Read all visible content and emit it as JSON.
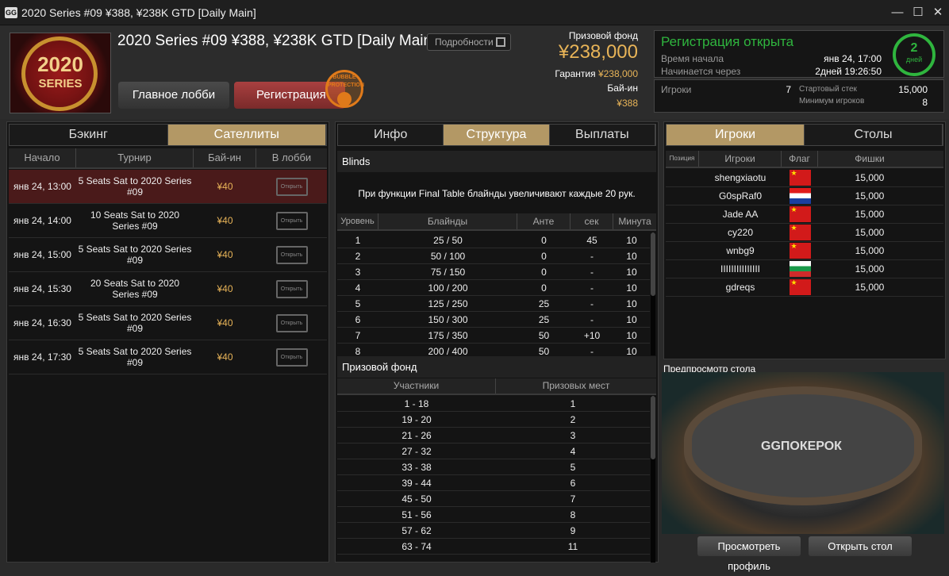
{
  "window": {
    "title": "2020 Series #09 ¥388, ¥238K GTD [Daily Main]",
    "app_logo": "GG",
    "minimize": "—",
    "maximize": "☐",
    "close": "✕"
  },
  "header": {
    "logo_year": "2020",
    "logo_series": "SERIES",
    "title": "2020 Series #09 ¥388, ¥238K GTD [Daily Main]",
    "details_label": "Подробности",
    "lobby_label": "Главное лобби",
    "register_label": "Регистрация",
    "bubble_badge": "BUBBLE PROTECTION",
    "prize_pool_label": "Призовой фонд",
    "prize_pool": "¥238,000",
    "guarantee_label": "Гарантия",
    "guarantee": "¥238,000",
    "buyin_label": "Бай-ин",
    "buyin": "¥388"
  },
  "status": {
    "title": "Регистрация открыта",
    "start_label": "Время начала",
    "start": "янв 24, 17:00",
    "starts_in_label": "Начинается через",
    "starts_in": "2дней 19:26:50",
    "days": "2",
    "days_label": "дней",
    "players_label": "Игроки",
    "players": "7",
    "stack_label": "Стартовый стек",
    "stack": "15,000",
    "min_label": "Минимум игроков",
    "min": "8",
    "accent": "#2fb53e"
  },
  "left": {
    "tabs": [
      "Бэкинг",
      "Сателлиты"
    ],
    "active_tab": 1,
    "columns": [
      "Начало",
      "Турнир",
      "Бай-ин",
      "В лобби"
    ],
    "rows": [
      {
        "start": "янв 24, 13:00",
        "name": "5 Seats Sat to 2020 Series #09",
        "buyin": "¥40",
        "action": "Открыть",
        "selected": true
      },
      {
        "start": "янв 24, 14:00",
        "name": "10 Seats Sat to 2020 Series #09",
        "buyin": "¥40",
        "action": "Открыть"
      },
      {
        "start": "янв 24, 15:00",
        "name": "5 Seats Sat to 2020 Series #09",
        "buyin": "¥40",
        "action": "Открыть"
      },
      {
        "start": "янв 24, 15:30",
        "name": "20 Seats Sat to 2020 Series #09",
        "buyin": "¥40",
        "action": "Открыть"
      },
      {
        "start": "янв 24, 16:30",
        "name": "5 Seats Sat to 2020 Series #09",
        "buyin": "¥40",
        "action": "Открыть"
      },
      {
        "start": "янв 24, 17:30",
        "name": "5 Seats Sat to 2020 Series #09",
        "buyin": "¥40",
        "action": "Открыть"
      }
    ]
  },
  "middle": {
    "tabs": [
      "Инфо",
      "Структура",
      "Выплаты"
    ],
    "active_tab": 1,
    "blinds_title": "Blinds",
    "blinds_note": "При функции Final Table блайнды увеличивают каждые 20 рук.",
    "blinds_columns": [
      "Уровень",
      "Блайнды",
      "Анте",
      "сек",
      "Минута"
    ],
    "blinds": [
      [
        "1",
        "25 / 50",
        "0",
        "45",
        "10"
      ],
      [
        "2",
        "50 / 100",
        "0",
        "-",
        "10"
      ],
      [
        "3",
        "75 / 150",
        "0",
        "-",
        "10"
      ],
      [
        "4",
        "100 / 200",
        "0",
        "-",
        "10"
      ],
      [
        "5",
        "125 / 250",
        "25",
        "-",
        "10"
      ],
      [
        "6",
        "150 / 300",
        "25",
        "-",
        "10"
      ],
      [
        "7",
        "175 / 350",
        "50",
        "+10",
        "10"
      ],
      [
        "8",
        "200 / 400",
        "50",
        "-",
        "10"
      ]
    ],
    "prize_title": "Призовой фонд",
    "prize_columns": [
      "Участники",
      "Призовых мест"
    ],
    "prizes": [
      [
        "1 - 18",
        "1"
      ],
      [
        "19 - 20",
        "2"
      ],
      [
        "21 - 26",
        "3"
      ],
      [
        "27 - 32",
        "4"
      ],
      [
        "33 - 38",
        "5"
      ],
      [
        "39 - 44",
        "6"
      ],
      [
        "45 - 50",
        "7"
      ],
      [
        "51 - 56",
        "8"
      ],
      [
        "57 - 62",
        "9"
      ],
      [
        "63 - 74",
        "11"
      ]
    ]
  },
  "right": {
    "tabs": [
      "Игроки",
      "Столы"
    ],
    "active_tab": 0,
    "columns": [
      "Позиция",
      "Игроки",
      "Флаг",
      "Фишки"
    ],
    "players": [
      {
        "name": "shengxiaotu",
        "flag": "cn",
        "chips": "15,000"
      },
      {
        "name": "G0spRaf0",
        "flag": "hr",
        "chips": "15,000"
      },
      {
        "name": "Jade AA",
        "flag": "cn",
        "chips": "15,000"
      },
      {
        "name": "cy220",
        "flag": "cn",
        "chips": "15,000"
      },
      {
        "name": "wnbg9",
        "flag": "cn",
        "chips": "15,000"
      },
      {
        "name": "IIIIIIIIIIIIIII",
        "flag": "bg",
        "chips": "15,000"
      },
      {
        "name": "gdreqs",
        "flag": "cn",
        "chips": "15,000"
      }
    ],
    "preview_label": "Предпросмотр стола",
    "preview_brand": "GGПОКЕРОК",
    "view_profile": "Просмотреть профиль",
    "open_table": "Открыть стол"
  }
}
